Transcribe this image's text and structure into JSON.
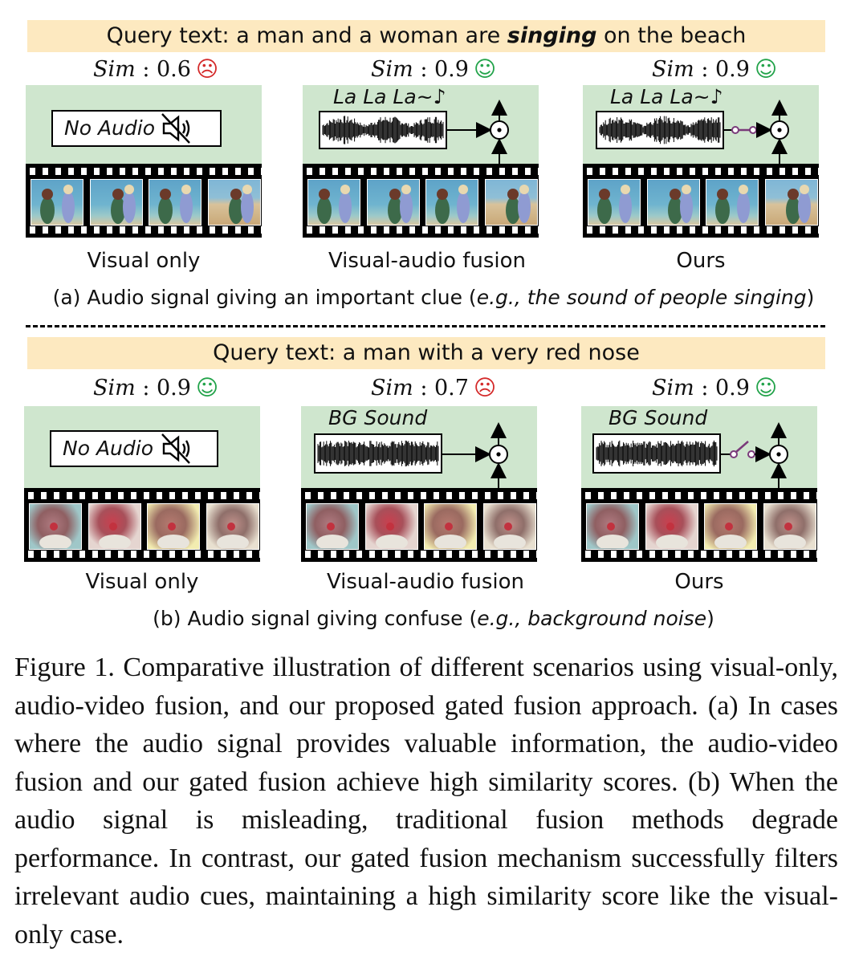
{
  "section_a": {
    "query_prefix": "Query text: a man and a woman are ",
    "query_highlight": "singing",
    "query_suffix": " on the beach",
    "sim_label": "Sim",
    "sim_sep": " : ",
    "panels": [
      {
        "sim_value": "0.6",
        "face": "☹",
        "caption": "Visual only",
        "audio_text": "No Audio"
      },
      {
        "sim_value": "0.9",
        "face": "☺",
        "caption": "Visual-audio fusion",
        "audio_text": "La La La~♪"
      },
      {
        "sim_value": "0.9",
        "face": "☺",
        "caption": "Ours",
        "audio_text": "La La La~♪"
      }
    ],
    "subcaption_prefix": "(a) Audio signal giving an important clue (",
    "subcaption_italic": "e.g., the sound of people singing",
    "subcaption_suffix": ")"
  },
  "section_b": {
    "query_text": "Query text: a man with a very red nose",
    "sim_label": "Sim",
    "sim_sep": " : ",
    "panels": [
      {
        "sim_value": "0.9",
        "face": "☺",
        "caption": "Visual only",
        "audio_text": "No Audio"
      },
      {
        "sim_value": "0.7",
        "face": "☹",
        "caption": "Visual-audio fusion",
        "audio_text": "BG Sound"
      },
      {
        "sim_value": "0.9",
        "face": "☺",
        "caption": "Ours",
        "audio_text": "BG Sound"
      }
    ],
    "subcaption_prefix": "(b) Audio signal giving confuse (",
    "subcaption_italic": "e.g., background noise",
    "subcaption_suffix": ")"
  },
  "figure_caption": "Figure 1.  Comparative illustration of different scenarios using visual-only, audio-video fusion, and our proposed gated fusion approach. (a) In cases where the audio signal provides valuable information, the audio-video fusion and our gated fusion achieve high similarity scores. (b) When the audio signal is misleading, traditional fusion methods degrade performance. In contrast, our gated fusion mechanism successfully filters irrelevant audio cues, maintaining a high similarity score like the visual-only case.",
  "colors": {
    "query_bg": "#fde9c0",
    "panel_green": "#cfe6ce",
    "happy": "#22a34a",
    "sad": "#d42a2a",
    "gate": "#7a3a7a"
  }
}
